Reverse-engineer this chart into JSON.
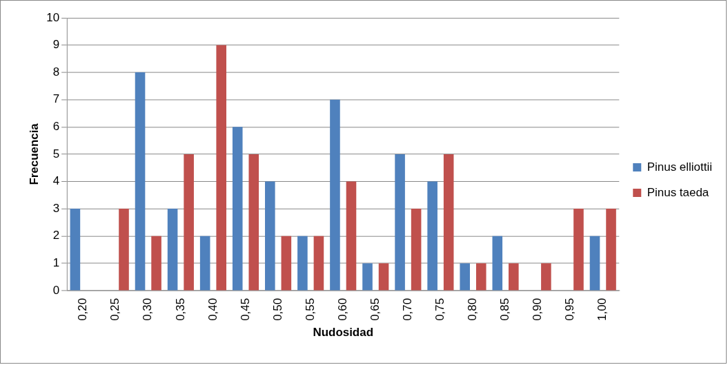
{
  "chart_data": {
    "type": "bar",
    "xlabel": "Nudosidad",
    "ylabel": "Frecuencia",
    "categories": [
      "0,20",
      "0,25",
      "0,30",
      "0,35",
      "0,40",
      "0,45",
      "0,50",
      "0,55",
      "0,60",
      "0,65",
      "0,70",
      "0,75",
      "0,80",
      "0,85",
      "0,90",
      "0,95",
      "1,00"
    ],
    "series": [
      {
        "name": "Pinus elliottii",
        "color": "#4f81bd",
        "values": [
          3,
          0,
          8,
          3,
          2,
          6,
          4,
          2,
          7,
          1,
          5,
          4,
          1,
          2,
          0,
          0,
          2
        ]
      },
      {
        "name": "Pinus taeda",
        "color": "#c0504d",
        "values": [
          0,
          3,
          2,
          5,
          9,
          5,
          2,
          2,
          4,
          1,
          3,
          5,
          1,
          1,
          1,
          3,
          3
        ]
      }
    ],
    "ylim": [
      0,
      10
    ],
    "yticks": [
      0,
      1,
      2,
      3,
      4,
      5,
      6,
      7,
      8,
      9,
      10
    ],
    "grid": "y",
    "legend": "right"
  }
}
